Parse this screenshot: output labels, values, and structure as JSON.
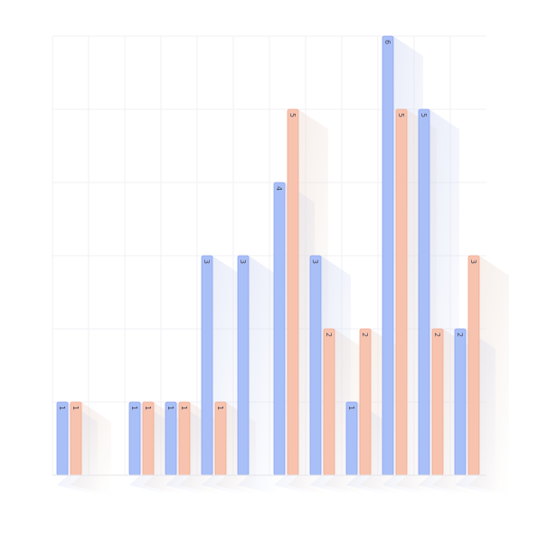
{
  "chart_data": {
    "type": "bar",
    "title": "",
    "xlabel": "",
    "ylabel": "",
    "ylim": [
      0,
      6
    ],
    "grid": true,
    "legend": "none",
    "categories": [
      "",
      "",
      "",
      "",
      "",
      "",
      "",
      "",
      "",
      "",
      "",
      ""
    ],
    "series": [
      {
        "color": "#a9bff7",
        "values": [
          1,
          null,
          1,
          1,
          3,
          3,
          4,
          3,
          1,
          6,
          5,
          2
        ]
      },
      {
        "color": "#f8c3ae",
        "values": [
          1,
          null,
          1,
          1,
          1,
          null,
          5,
          2,
          2,
          5,
          2,
          3
        ]
      }
    ]
  }
}
